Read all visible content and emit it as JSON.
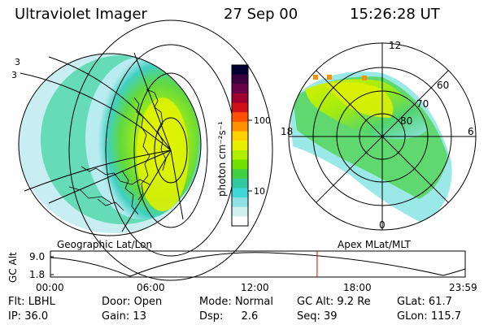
{
  "header": {
    "title": "Ultraviolet Imager",
    "date": "27 Sep 00",
    "time": "15:26:28 UT"
  },
  "left_panel": {
    "caption": "Geographic Lat/Lon",
    "corner_marks": [
      "3"
    ]
  },
  "colorbar": {
    "unit_label": "photon cm⁻²s⁻¹",
    "ticks": [
      "100",
      "10"
    ],
    "colors": [
      "#000033",
      "#3a0040",
      "#6a0048",
      "#a00030",
      "#d01018",
      "#ff5000",
      "#ff9000",
      "#ffd000",
      "#e8f000",
      "#b0f000",
      "#70e000",
      "#40d040",
      "#30c8a0",
      "#40d8d8",
      "#90e0e8",
      "#d0f0f0",
      "#ffffff"
    ]
  },
  "right_panel": {
    "caption": "Apex MLat/MLT",
    "mlt_labels": [
      "12",
      "18",
      "6",
      "0"
    ],
    "mlat_labels": [
      "60",
      "70",
      "80"
    ]
  },
  "altitude_plot": {
    "ylabel": "GC Alt",
    "yticks": [
      "9.0",
      "1.8"
    ],
    "xticks": [
      "00:00",
      "06:00",
      "12:00",
      "18:00",
      "23:59"
    ],
    "current_time_fraction": 0.643
  },
  "info": {
    "flt_label": "Flt:",
    "flt_value": "LBHL",
    "ip_label": "IP:",
    "ip_value": "36.0",
    "door_label": "Door:",
    "door_value": "Open",
    "gain_label": "Gain:",
    "gain_value": "13",
    "mode_label": "Mode:",
    "mode_value": "Normal",
    "dsp_label": "Dsp:",
    "dsp_value": "2.6",
    "gcalt_label": "GC Alt:",
    "gcalt_value": "9.2 Re",
    "seq_label": "Seq:",
    "seq_value": "39",
    "glat_label": "GLat:",
    "glat_value": "61.7",
    "glon_label": "GLon:",
    "glon_value": "115.7"
  }
}
